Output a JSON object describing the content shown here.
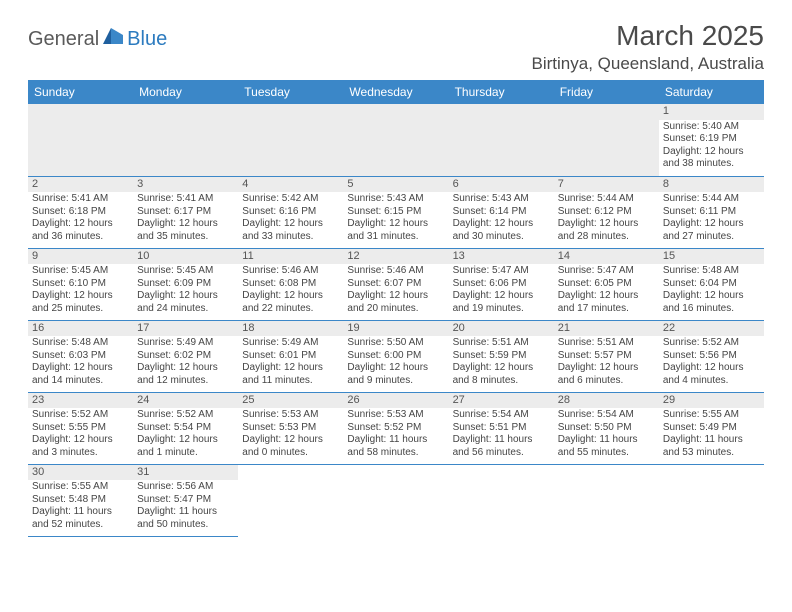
{
  "logo": {
    "general": "General",
    "blue": "Blue"
  },
  "title": "March 2025",
  "location": "Birtinya, Queensland, Australia",
  "colors": {
    "header_bg": "#3b87c8",
    "header_text": "#ffffff",
    "cell_border": "#3b87c8",
    "daynum_bg": "#ececec",
    "text": "#454545",
    "title_text": "#4a4a4a"
  },
  "weekdays": [
    "Sunday",
    "Monday",
    "Tuesday",
    "Wednesday",
    "Thursday",
    "Friday",
    "Saturday"
  ],
  "weeks": [
    [
      null,
      null,
      null,
      null,
      null,
      null,
      {
        "n": "1",
        "sr": "Sunrise: 5:40 AM",
        "ss": "Sunset: 6:19 PM",
        "dl": "Daylight: 12 hours and 38 minutes."
      }
    ],
    [
      {
        "n": "2",
        "sr": "Sunrise: 5:41 AM",
        "ss": "Sunset: 6:18 PM",
        "dl": "Daylight: 12 hours and 36 minutes."
      },
      {
        "n": "3",
        "sr": "Sunrise: 5:41 AM",
        "ss": "Sunset: 6:17 PM",
        "dl": "Daylight: 12 hours and 35 minutes."
      },
      {
        "n": "4",
        "sr": "Sunrise: 5:42 AM",
        "ss": "Sunset: 6:16 PM",
        "dl": "Daylight: 12 hours and 33 minutes."
      },
      {
        "n": "5",
        "sr": "Sunrise: 5:43 AM",
        "ss": "Sunset: 6:15 PM",
        "dl": "Daylight: 12 hours and 31 minutes."
      },
      {
        "n": "6",
        "sr": "Sunrise: 5:43 AM",
        "ss": "Sunset: 6:14 PM",
        "dl": "Daylight: 12 hours and 30 minutes."
      },
      {
        "n": "7",
        "sr": "Sunrise: 5:44 AM",
        "ss": "Sunset: 6:12 PM",
        "dl": "Daylight: 12 hours and 28 minutes."
      },
      {
        "n": "8",
        "sr": "Sunrise: 5:44 AM",
        "ss": "Sunset: 6:11 PM",
        "dl": "Daylight: 12 hours and 27 minutes."
      }
    ],
    [
      {
        "n": "9",
        "sr": "Sunrise: 5:45 AM",
        "ss": "Sunset: 6:10 PM",
        "dl": "Daylight: 12 hours and 25 minutes."
      },
      {
        "n": "10",
        "sr": "Sunrise: 5:45 AM",
        "ss": "Sunset: 6:09 PM",
        "dl": "Daylight: 12 hours and 24 minutes."
      },
      {
        "n": "11",
        "sr": "Sunrise: 5:46 AM",
        "ss": "Sunset: 6:08 PM",
        "dl": "Daylight: 12 hours and 22 minutes."
      },
      {
        "n": "12",
        "sr": "Sunrise: 5:46 AM",
        "ss": "Sunset: 6:07 PM",
        "dl": "Daylight: 12 hours and 20 minutes."
      },
      {
        "n": "13",
        "sr": "Sunrise: 5:47 AM",
        "ss": "Sunset: 6:06 PM",
        "dl": "Daylight: 12 hours and 19 minutes."
      },
      {
        "n": "14",
        "sr": "Sunrise: 5:47 AM",
        "ss": "Sunset: 6:05 PM",
        "dl": "Daylight: 12 hours and 17 minutes."
      },
      {
        "n": "15",
        "sr": "Sunrise: 5:48 AM",
        "ss": "Sunset: 6:04 PM",
        "dl": "Daylight: 12 hours and 16 minutes."
      }
    ],
    [
      {
        "n": "16",
        "sr": "Sunrise: 5:48 AM",
        "ss": "Sunset: 6:03 PM",
        "dl": "Daylight: 12 hours and 14 minutes."
      },
      {
        "n": "17",
        "sr": "Sunrise: 5:49 AM",
        "ss": "Sunset: 6:02 PM",
        "dl": "Daylight: 12 hours and 12 minutes."
      },
      {
        "n": "18",
        "sr": "Sunrise: 5:49 AM",
        "ss": "Sunset: 6:01 PM",
        "dl": "Daylight: 12 hours and 11 minutes."
      },
      {
        "n": "19",
        "sr": "Sunrise: 5:50 AM",
        "ss": "Sunset: 6:00 PM",
        "dl": "Daylight: 12 hours and 9 minutes."
      },
      {
        "n": "20",
        "sr": "Sunrise: 5:51 AM",
        "ss": "Sunset: 5:59 PM",
        "dl": "Daylight: 12 hours and 8 minutes."
      },
      {
        "n": "21",
        "sr": "Sunrise: 5:51 AM",
        "ss": "Sunset: 5:57 PM",
        "dl": "Daylight: 12 hours and 6 minutes."
      },
      {
        "n": "22",
        "sr": "Sunrise: 5:52 AM",
        "ss": "Sunset: 5:56 PM",
        "dl": "Daylight: 12 hours and 4 minutes."
      }
    ],
    [
      {
        "n": "23",
        "sr": "Sunrise: 5:52 AM",
        "ss": "Sunset: 5:55 PM",
        "dl": "Daylight: 12 hours and 3 minutes."
      },
      {
        "n": "24",
        "sr": "Sunrise: 5:52 AM",
        "ss": "Sunset: 5:54 PM",
        "dl": "Daylight: 12 hours and 1 minute."
      },
      {
        "n": "25",
        "sr": "Sunrise: 5:53 AM",
        "ss": "Sunset: 5:53 PM",
        "dl": "Daylight: 12 hours and 0 minutes."
      },
      {
        "n": "26",
        "sr": "Sunrise: 5:53 AM",
        "ss": "Sunset: 5:52 PM",
        "dl": "Daylight: 11 hours and 58 minutes."
      },
      {
        "n": "27",
        "sr": "Sunrise: 5:54 AM",
        "ss": "Sunset: 5:51 PM",
        "dl": "Daylight: 11 hours and 56 minutes."
      },
      {
        "n": "28",
        "sr": "Sunrise: 5:54 AM",
        "ss": "Sunset: 5:50 PM",
        "dl": "Daylight: 11 hours and 55 minutes."
      },
      {
        "n": "29",
        "sr": "Sunrise: 5:55 AM",
        "ss": "Sunset: 5:49 PM",
        "dl": "Daylight: 11 hours and 53 minutes."
      }
    ],
    [
      {
        "n": "30",
        "sr": "Sunrise: 5:55 AM",
        "ss": "Sunset: 5:48 PM",
        "dl": "Daylight: 11 hours and 52 minutes."
      },
      {
        "n": "31",
        "sr": "Sunrise: 5:56 AM",
        "ss": "Sunset: 5:47 PM",
        "dl": "Daylight: 11 hours and 50 minutes."
      },
      null,
      null,
      null,
      null,
      null
    ]
  ]
}
